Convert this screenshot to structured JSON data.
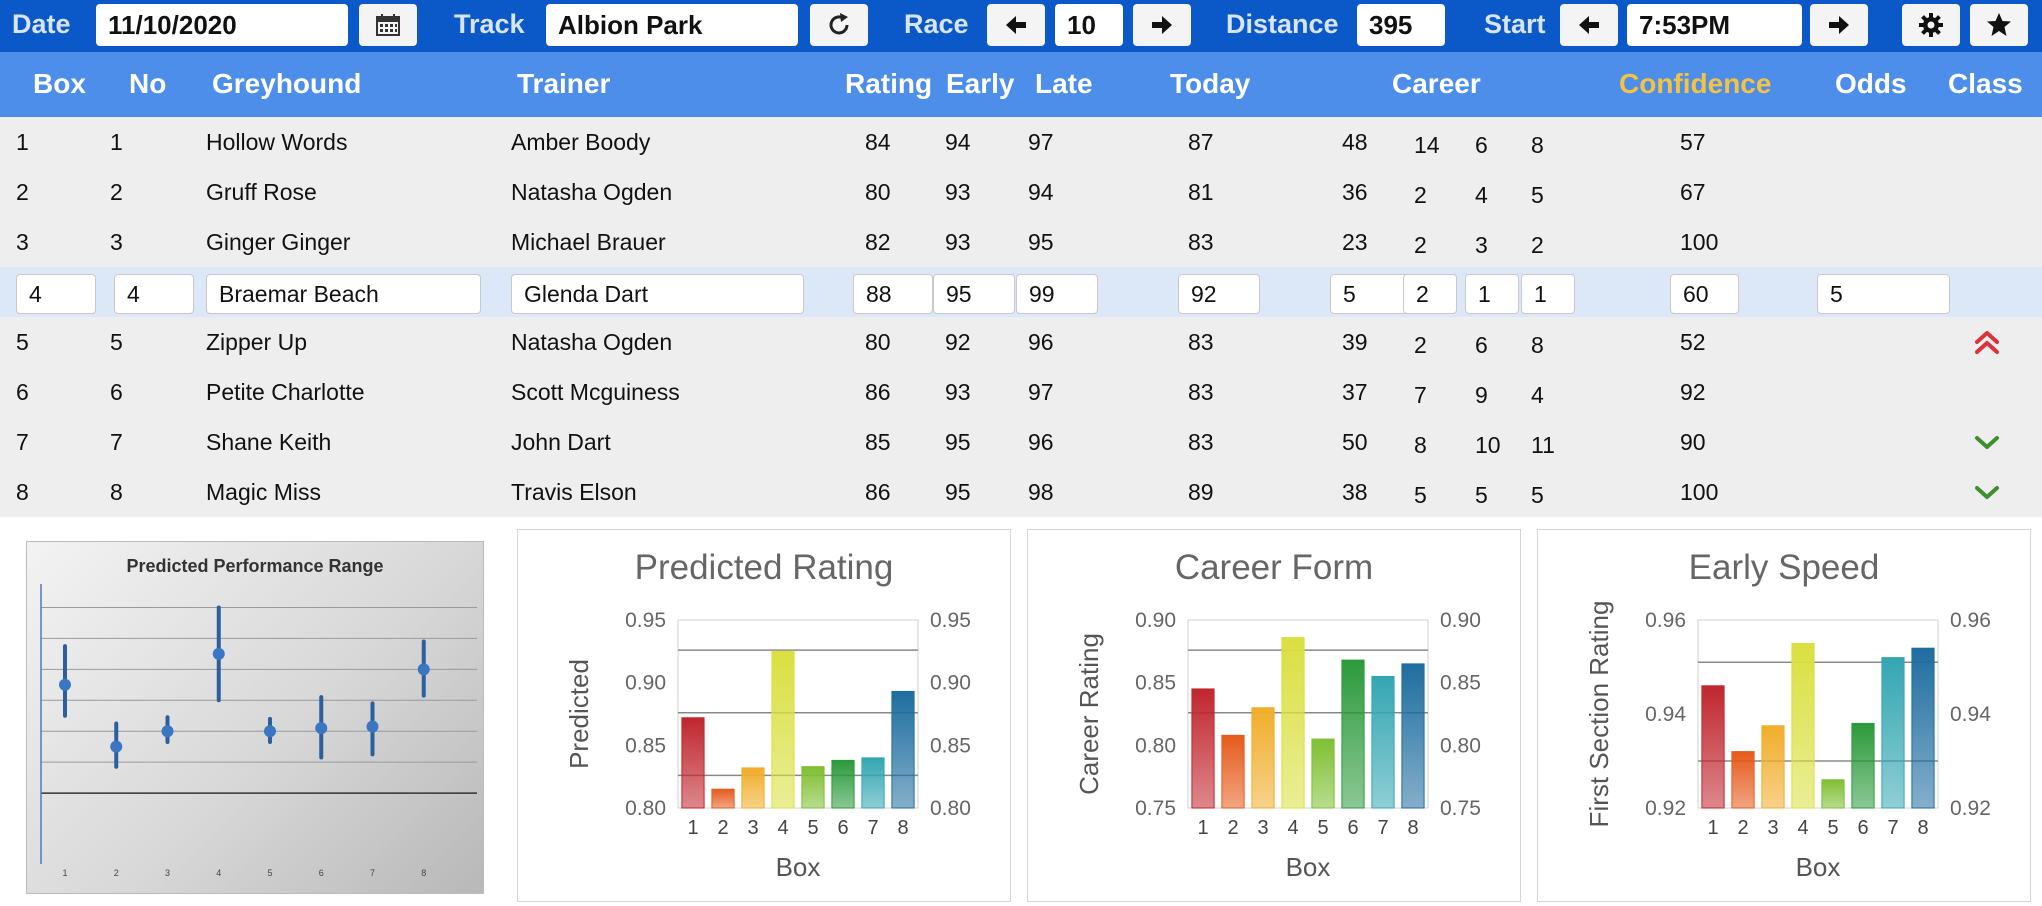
{
  "toolbar": {
    "date_label": "Date",
    "date_value": "11/10/2020",
    "track_label": "Track",
    "track_value": "Albion Park",
    "race_label": "Race",
    "race_value": "10",
    "distance_label": "Distance",
    "distance_value": "395",
    "start_label": "Start",
    "start_value": "7:53PM"
  },
  "columns": {
    "box": "Box",
    "no": "No",
    "greyhound": "Greyhound",
    "trainer": "Trainer",
    "rating": "Rating",
    "early": "Early",
    "late": "Late",
    "today": "Today",
    "career": "Career",
    "confidence": "Confidence",
    "odds": "Odds",
    "class": "Class"
  },
  "rows": [
    {
      "box": "1",
      "no": "1",
      "greyhound": "Hollow Words",
      "trainer": "Amber Boody",
      "rating": "84",
      "early": "94",
      "late": "97",
      "today": "87",
      "c1": "48",
      "c2": "14",
      "c3": "6",
      "c4": "8",
      "confidence": "57",
      "odds": "",
      "class_icon": ""
    },
    {
      "box": "2",
      "no": "2",
      "greyhound": "Gruff Rose",
      "trainer": "Natasha Ogden",
      "rating": "80",
      "early": "93",
      "late": "94",
      "today": "81",
      "c1": "36",
      "c2": "2",
      "c3": "4",
      "c4": "5",
      "confidence": "67",
      "odds": "",
      "class_icon": ""
    },
    {
      "box": "3",
      "no": "3",
      "greyhound": "Ginger Ginger",
      "trainer": "Michael Brauer",
      "rating": "82",
      "early": "93",
      "late": "95",
      "today": "83",
      "c1": "23",
      "c2": "2",
      "c3": "3",
      "c4": "2",
      "confidence": "100",
      "odds": "",
      "class_icon": ""
    },
    {
      "box": "4",
      "no": "4",
      "greyhound": "Braemar Beach",
      "trainer": "Glenda Dart",
      "rating": "88",
      "early": "95",
      "late": "99",
      "today": "92",
      "c1": "5",
      "c2": "2",
      "c3": "1",
      "c4": "1",
      "confidence": "60",
      "odds": "5",
      "class_icon": ""
    },
    {
      "box": "5",
      "no": "5",
      "greyhound": "Zipper Up",
      "trainer": "Natasha Ogden",
      "rating": "80",
      "early": "92",
      "late": "96",
      "today": "83",
      "c1": "39",
      "c2": "2",
      "c3": "6",
      "c4": "8",
      "confidence": "52",
      "odds": "",
      "class_icon": "double-chevron-up-icon"
    },
    {
      "box": "6",
      "no": "6",
      "greyhound": "Petite Charlotte",
      "trainer": "Scott Mcguiness",
      "rating": "86",
      "early": "93",
      "late": "97",
      "today": "83",
      "c1": "37",
      "c2": "7",
      "c3": "9",
      "c4": "4",
      "confidence": "92",
      "odds": "",
      "class_icon": ""
    },
    {
      "box": "7",
      "no": "7",
      "greyhound": "Shane Keith",
      "trainer": "John Dart",
      "rating": "85",
      "early": "95",
      "late": "96",
      "today": "83",
      "c1": "50",
      "c2": "8",
      "c3": "10",
      "c4": "11",
      "confidence": "90",
      "odds": "",
      "class_icon": "chevron-down-icon"
    },
    {
      "box": "8",
      "no": "8",
      "greyhound": "Magic Miss",
      "trainer": "Travis Elson",
      "rating": "86",
      "early": "95",
      "late": "98",
      "today": "89",
      "c1": "38",
      "c2": "5",
      "c3": "5",
      "c4": "5",
      "confidence": "100",
      "odds": "",
      "class_icon": "chevron-down-icon"
    }
  ],
  "selected_row": 3,
  "colors": {
    "toolbar_bg": "#0b59c8",
    "header_bg": "#4c8ee9",
    "confidence_header": "#f5c242",
    "row_bg": "#eeeeee",
    "selected_row_bg": "#dce8f8",
    "class_up": "#d9343a",
    "class_down": "#3f8f2f",
    "bar_colors": [
      "#c0262e",
      "#e55b1c",
      "#f0ad2a",
      "#d9e03f",
      "#7fbf32",
      "#2c9a3c",
      "#33a6b2",
      "#1f6d9f"
    ]
  },
  "chart_data": [
    {
      "type": "scatter",
      "title": "Predicted Performance Range",
      "categories": [
        "1",
        "2",
        "3",
        "4",
        "5",
        "6",
        "7",
        "8"
      ],
      "values": [
        0.87,
        0.83,
        0.84,
        0.89,
        0.84,
        0.842,
        0.843,
        0.88
      ],
      "low": [
        0.85,
        0.817,
        0.833,
        0.86,
        0.833,
        0.823,
        0.825,
        0.863
      ],
      "high": [
        0.895,
        0.845,
        0.849,
        0.92,
        0.848,
        0.862,
        0.858,
        0.898
      ],
      "grid": true
    },
    {
      "type": "bar",
      "title": "Predicted Rating",
      "xlabel": "Box",
      "ylabel": "Predicted",
      "categories": [
        "1",
        "2",
        "3",
        "4",
        "5",
        "6",
        "7",
        "8"
      ],
      "values": [
        0.872,
        0.815,
        0.832,
        0.925,
        0.833,
        0.838,
        0.84,
        0.893
      ],
      "ylim": [
        0.8,
        0.95
      ],
      "yticks": [
        "0.95",
        "0.90",
        "0.85",
        "0.80"
      ],
      "ref_lines": [
        0.926,
        0.876,
        0.826
      ],
      "secondary_axis": true
    },
    {
      "type": "bar",
      "title": "Career Form",
      "xlabel": "Box",
      "ylabel": "Career Rating",
      "categories": [
        "1",
        "2",
        "3",
        "4",
        "5",
        "6",
        "7",
        "8"
      ],
      "values": [
        0.845,
        0.808,
        0.83,
        0.886,
        0.805,
        0.868,
        0.855,
        0.865
      ],
      "ylim": [
        0.75,
        0.9
      ],
      "yticks": [
        "0.90",
        "0.85",
        "0.80",
        "0.75"
      ],
      "ref_lines": [
        0.876,
        0.826
      ],
      "secondary_axis": true
    },
    {
      "type": "bar",
      "title": "Early Speed",
      "xlabel": "Box",
      "ylabel": "First Section Rating",
      "categories": [
        "1",
        "2",
        "3",
        "4",
        "5",
        "6",
        "7",
        "8"
      ],
      "values": [
        0.946,
        0.932,
        0.9375,
        0.955,
        0.926,
        0.938,
        0.952,
        0.954
      ],
      "ylim": [
        0.92,
        0.96
      ],
      "yticks": [
        "0.96",
        "0.94",
        "0.92"
      ],
      "ref_lines": [
        0.951,
        0.93
      ],
      "secondary_axis": true
    }
  ]
}
